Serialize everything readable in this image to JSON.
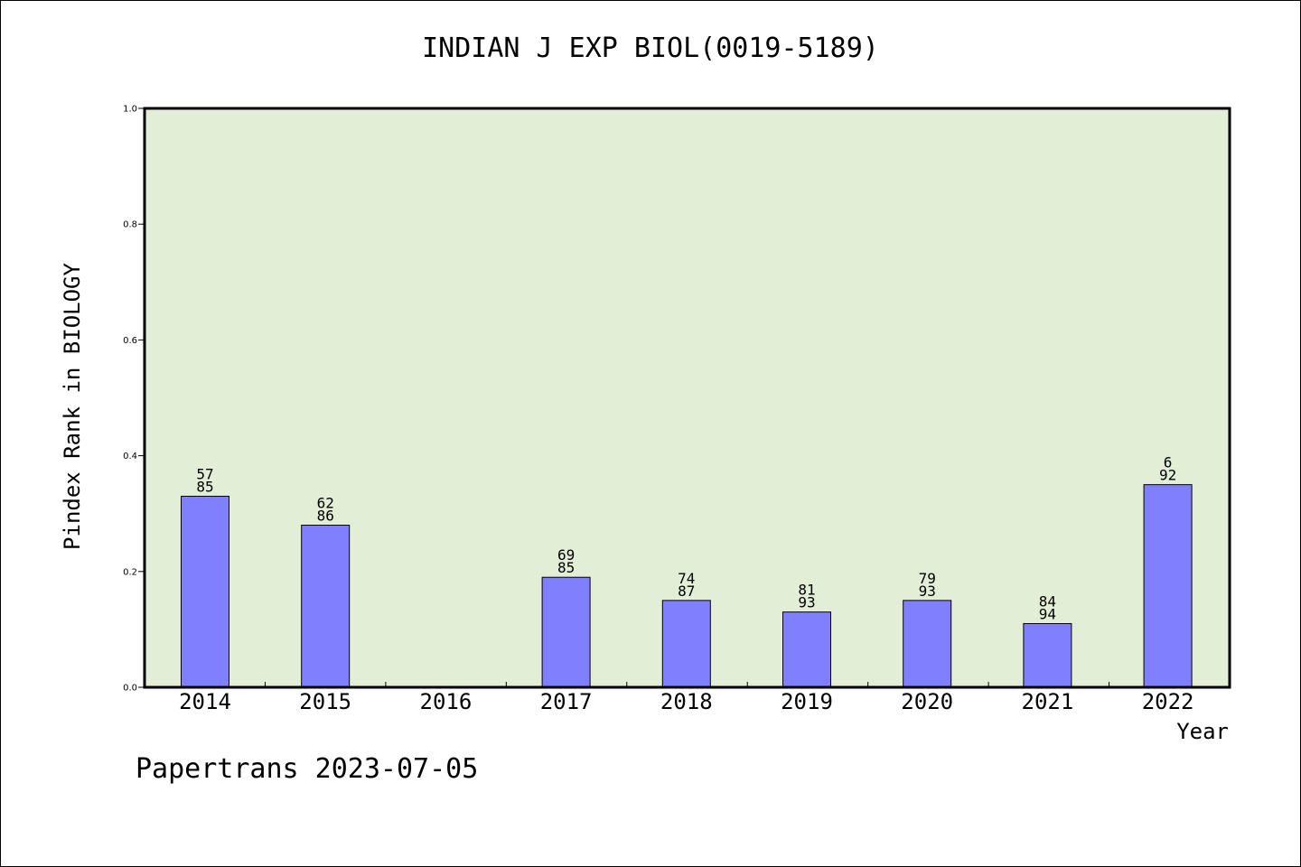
{
  "chart_data": {
    "type": "bar",
    "title": "INDIAN J EXP BIOL(0019-5189)",
    "xlabel": "Year",
    "ylabel": "Pindex Rank in BIOLOGY",
    "ylim": [
      0,
      1.0
    ],
    "yticks": [
      "0.0",
      "0.2",
      "0.4",
      "0.6",
      "0.8",
      "1.0"
    ],
    "categories": [
      "2014",
      "2015",
      "2016",
      "2017",
      "2018",
      "2019",
      "2020",
      "2021",
      "2022"
    ],
    "values": [
      0.33,
      0.28,
      null,
      0.19,
      0.15,
      0.13,
      0.15,
      0.11,
      0.35
    ],
    "labels_top": [
      "57",
      "62",
      null,
      "69",
      "74",
      "81",
      "79",
      "84",
      "6"
    ],
    "labels_bottom": [
      "85",
      "86",
      null,
      "85",
      "87",
      "93",
      "93",
      "94",
      "92"
    ],
    "grid": false,
    "colors": {
      "plot_bg": "#e2efd6",
      "bar": "#8080ff",
      "axis": "#000000"
    }
  },
  "footer": "Papertrans 2023-07-05"
}
